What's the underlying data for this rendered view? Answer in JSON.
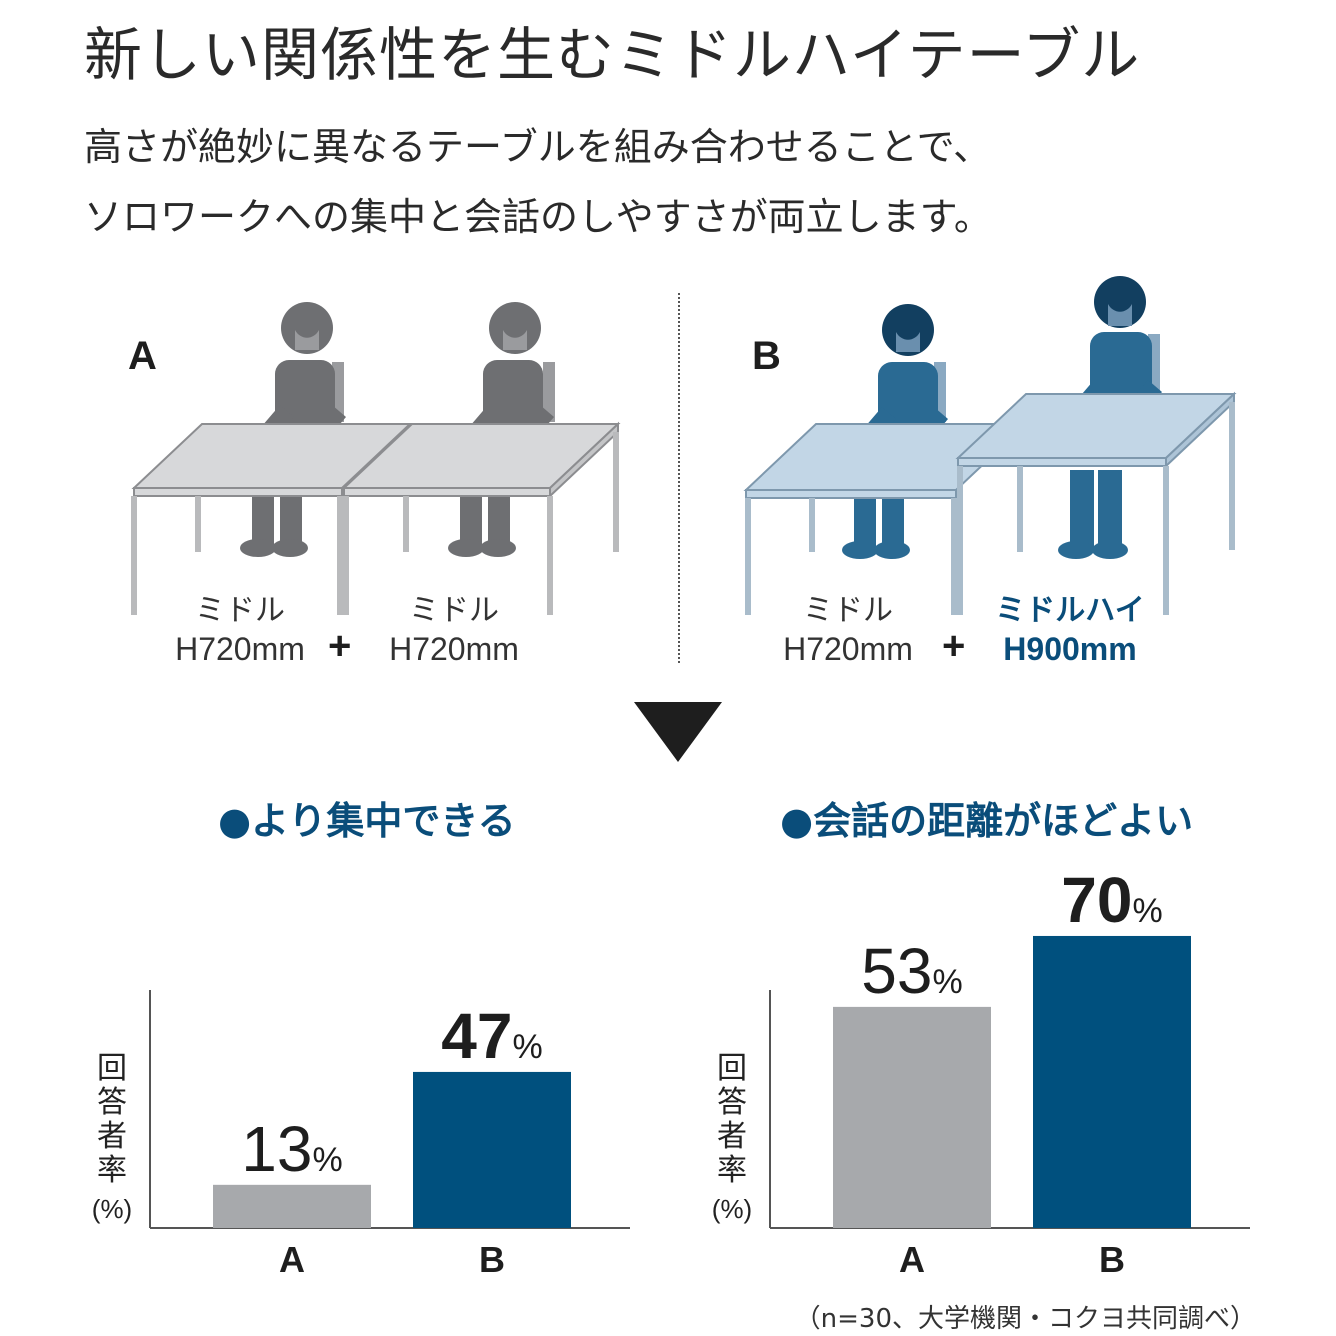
{
  "title": "新しい関係性を生むミドルハイテーブル",
  "lead": {
    "line1": "高さが絶妙に異なるテーブルを組み合わせることで、",
    "line2": "ソロワークへの集中と会話のしやすさが両立します。"
  },
  "illustration": {
    "panel_a": {
      "label": "A",
      "left_table": {
        "name": "ミドル",
        "height": "H720mm"
      },
      "right_table": {
        "name": "ミドル",
        "height": "H720mm"
      },
      "plus": "+"
    },
    "panel_b": {
      "label": "B",
      "left_table": {
        "name": "ミドル",
        "height": "H720mm"
      },
      "right_table": {
        "name": "ミドルハイ",
        "height": "H900mm"
      },
      "plus": "+"
    },
    "colors": {
      "gray_person": "#6e6f72",
      "gray_table": "#d7d8da",
      "blue_person": "#2a6a93",
      "blue_table": "#c2d6e6"
    }
  },
  "chart_data": [
    {
      "type": "bar",
      "title": "●より集中できる",
      "ylabel": "回答者率(%)",
      "categories": [
        "A",
        "B"
      ],
      "values": [
        13,
        47
      ],
      "value_labels": [
        "13",
        "47"
      ],
      "unit": "%",
      "ylim": [
        0,
        70
      ],
      "colors": [
        "#a7a9ac",
        "#00507e"
      ],
      "grid": false
    },
    {
      "type": "bar",
      "title": "●会話の距離がほどよい",
      "ylabel": "回答者率(%)",
      "categories": [
        "A",
        "B"
      ],
      "values": [
        53,
        70
      ],
      "value_labels": [
        "53",
        "70"
      ],
      "unit": "%",
      "ylim": [
        0,
        70
      ],
      "colors": [
        "#a7a9ac",
        "#00507e"
      ],
      "grid": false
    }
  ],
  "footnote": "（n=30、大学機関・コクヨ共同調べ）"
}
